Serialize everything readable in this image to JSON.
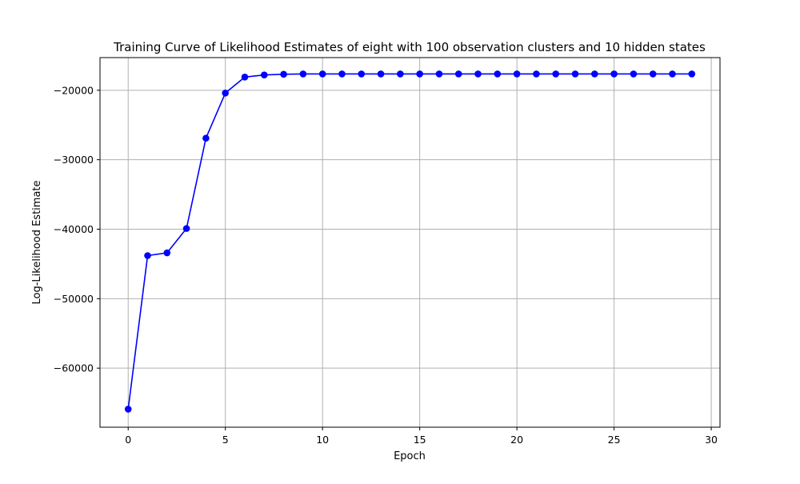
{
  "chart_data": {
    "type": "line",
    "title": "Training Curve of Likelihood Estimates of eight with 100 observation clusters and 10 hidden states",
    "xlabel": "Epoch",
    "ylabel": "Log-Likelihood Estimate",
    "xlim": [
      -1.45,
      30.45
    ],
    "ylim": [
      -68500,
      -15300
    ],
    "xticks": [
      0,
      5,
      10,
      15,
      20,
      25,
      30
    ],
    "yticks": [
      -60000,
      -50000,
      -40000,
      -30000,
      -20000
    ],
    "xtick_labels": [
      "0",
      "5",
      "10",
      "15",
      "20",
      "25",
      "30"
    ],
    "ytick_labels": [
      "−60000",
      "−50000",
      "−40000",
      "−30000",
      "−20000"
    ],
    "grid": true,
    "legend": "none",
    "series": [
      {
        "color": "#0000ff",
        "marker": "circle",
        "x": [
          0,
          1,
          2,
          3,
          4,
          5,
          6,
          7,
          8,
          9,
          10,
          11,
          12,
          13,
          14,
          15,
          16,
          17,
          18,
          19,
          20,
          21,
          22,
          23,
          24,
          25,
          26,
          27,
          28,
          29
        ],
        "y": [
          -65900,
          -43800,
          -43400,
          -39900,
          -26900,
          -20400,
          -18100,
          -17800,
          -17700,
          -17650,
          -17650,
          -17650,
          -17650,
          -17650,
          -17650,
          -17650,
          -17650,
          -17650,
          -17650,
          -17650,
          -17650,
          -17650,
          -17650,
          -17650,
          -17650,
          -17650,
          -17650,
          -17650,
          -17650,
          -17650
        ]
      }
    ]
  }
}
